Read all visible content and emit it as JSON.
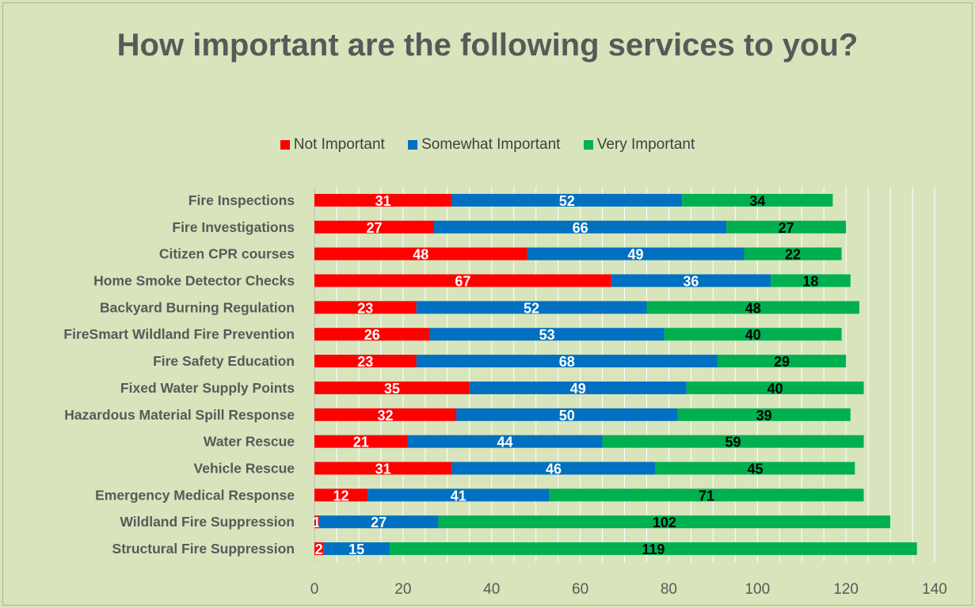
{
  "chart_data": {
    "type": "bar",
    "orientation": "horizontal",
    "stacked": true,
    "title": "How important are the following services to you?",
    "categories": [
      "Fire Inspections",
      "Fire Investigations",
      "Citizen CPR courses",
      "Home Smoke Detector Checks",
      "Backyard Burning Regulation",
      "FireSmart Wildland Fire Prevention",
      "Fire Safety Education",
      "Fixed Water Supply Points",
      "Hazardous Material Spill Response",
      "Water Rescue",
      "Vehicle Rescue",
      "Emergency Medical Response",
      "Wildland Fire Suppression",
      "Structural Fire Suppression"
    ],
    "series": [
      {
        "name": "Not Important",
        "color": "#ff0000",
        "label_color": "#ffffff",
        "values": [
          31,
          27,
          48,
          67,
          23,
          26,
          23,
          35,
          32,
          21,
          31,
          12,
          1,
          2
        ]
      },
      {
        "name": "Somewhat Important",
        "color": "#0070c0",
        "label_color": "#ffffff",
        "values": [
          52,
          66,
          49,
          36,
          52,
          53,
          68,
          49,
          50,
          44,
          46,
          41,
          27,
          15
        ]
      },
      {
        "name": "Very Important",
        "color": "#00b050",
        "label_color": "#000000",
        "values": [
          34,
          27,
          22,
          18,
          48,
          40,
          29,
          40,
          39,
          59,
          45,
          71,
          102,
          119
        ]
      }
    ],
    "xlim": [
      0,
      140
    ],
    "xticks": [
      0,
      20,
      40,
      60,
      80,
      100,
      120,
      140
    ],
    "grid": "vertical minor every 5",
    "legend_position": "top"
  }
}
